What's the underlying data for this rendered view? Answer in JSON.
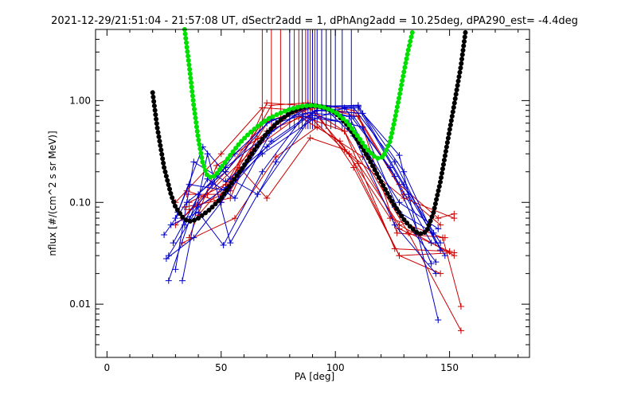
{
  "chart_data": {
    "type": "line",
    "title": "2021-12-29/21:51:04 - 21:57:08 UT, dSectr2add = 1, dPhAng2add = 10.25deg, dPA290_est=  -4.4deg",
    "xlabel": "PA [deg]",
    "ylabel": "nflux [#/(cm^2 s sr MeV)]",
    "xlim": [
      -5,
      185
    ],
    "ylim": [
      0.003,
      5
    ],
    "yscale": "log",
    "grid": false,
    "x_ticks": [
      {
        "value": 0,
        "label": "0"
      },
      {
        "value": 50,
        "label": "50"
      },
      {
        "value": 100,
        "label": "100"
      },
      {
        "value": 150,
        "label": "150"
      }
    ],
    "y_ticks": [
      {
        "value": 0.01,
        "label": "0.01"
      },
      {
        "value": 0.1,
        "label": "0.10"
      },
      {
        "value": 1,
        "label": "1.00"
      }
    ],
    "fit_curves": [
      {
        "color": "#000000",
        "x": [
          20,
          22,
          25,
          28,
          30,
          33,
          35,
          37,
          40,
          45,
          50,
          55,
          60,
          65,
          70,
          75,
          80,
          85,
          90,
          95,
          100,
          105,
          110,
          115,
          120,
          125,
          130,
          133,
          136,
          138,
          140,
          143,
          146,
          149,
          152,
          155,
          157
        ],
        "y": [
          1.2,
          0.55,
          0.22,
          0.12,
          0.09,
          0.072,
          0.066,
          0.065,
          0.07,
          0.085,
          0.11,
          0.16,
          0.23,
          0.34,
          0.48,
          0.62,
          0.75,
          0.85,
          0.9,
          0.86,
          0.76,
          0.58,
          0.4,
          0.26,
          0.16,
          0.1,
          0.068,
          0.057,
          0.05,
          0.049,
          0.052,
          0.08,
          0.16,
          0.38,
          0.9,
          2.2,
          4.8
        ]
      },
      {
        "color": "#00e000",
        "x": [
          34,
          36,
          38,
          40,
          42,
          44,
          46,
          48,
          50,
          54,
          58,
          62,
          66,
          70,
          75,
          80,
          85,
          90,
          95,
          100,
          105,
          110,
          114,
          118,
          121,
          124,
          126,
          128,
          130,
          132,
          134
        ],
        "y": [
          5,
          2.2,
          0.9,
          0.42,
          0.24,
          0.18,
          0.175,
          0.19,
          0.22,
          0.29,
          0.38,
          0.47,
          0.56,
          0.65,
          0.74,
          0.82,
          0.88,
          0.9,
          0.86,
          0.77,
          0.62,
          0.44,
          0.33,
          0.27,
          0.28,
          0.4,
          0.65,
          1.1,
          1.9,
          3.2,
          5
        ]
      }
    ],
    "vertical_markers": [
      {
        "x": 68,
        "color": "#cc0000"
      },
      {
        "x": 72,
        "color": "#cc0000"
      },
      {
        "x": 76,
        "color": "#cc0000"
      },
      {
        "x": 80,
        "color": "#0000cc"
      },
      {
        "x": 82,
        "color": "#cc0000"
      },
      {
        "x": 84,
        "color": "#cc0000"
      },
      {
        "x": 85.5,
        "color": "#0000cc"
      },
      {
        "x": 87,
        "color": "#cc0000"
      },
      {
        "x": 88,
        "color": "#0000cc"
      },
      {
        "x": 89,
        "color": "#cc0000"
      },
      {
        "x": 90,
        "color": "#0000cc"
      },
      {
        "x": 91,
        "color": "#cc0000"
      },
      {
        "x": 92,
        "color": "#0000cc"
      },
      {
        "x": 94,
        "color": "#0000cc"
      },
      {
        "x": 96,
        "color": "#0000cc"
      },
      {
        "x": 98,
        "color": "#0000cc"
      },
      {
        "x": 100,
        "color": "#0000cc"
      },
      {
        "x": 103,
        "color": "#0000cc"
      },
      {
        "x": 107,
        "color": "#0000cc"
      }
    ],
    "series": [
      {
        "color": "#cc0000",
        "x": [
          35,
          50,
          70,
          90,
          110,
          128,
          145,
          152
        ],
        "y": [
          0.13,
          0.1,
          0.95,
          0.88,
          0.7,
          0.15,
          0.07,
          0.077
        ]
      },
      {
        "color": "#cc0000",
        "x": [
          36,
          52,
          72,
          88,
          108,
          130,
          146
        ],
        "y": [
          0.1,
          0.15,
          0.9,
          0.95,
          0.8,
          0.12,
          0.06
        ]
      },
      {
        "color": "#cc0000",
        "x": [
          33,
          52,
          68,
          90,
          110,
          127,
          148
        ],
        "y": [
          0.07,
          0.2,
          0.6,
          0.85,
          0.75,
          0.05,
          0.045
        ]
      },
      {
        "color": "#cc0000",
        "x": [
          36,
          48,
          66,
          86,
          104,
          126,
          150
        ],
        "y": [
          0.045,
          0.23,
          0.42,
          0.9,
          0.5,
          0.035,
          0.033
        ]
      },
      {
        "color": "#cc0000",
        "x": [
          35,
          50,
          72,
          88,
          106,
          128,
          152
        ],
        "y": [
          0.12,
          0.12,
          0.7,
          0.9,
          0.3,
          0.03,
          0.032
        ]
      },
      {
        "color": "#cc0000",
        "x": [
          30,
          44,
          64,
          84,
          102,
          124,
          147,
          155
        ],
        "y": [
          0.06,
          0.12,
          0.33,
          0.7,
          0.4,
          0.07,
          0.045,
          0.0095
        ]
      },
      {
        "color": "#cc0000",
        "x": [
          33,
          56,
          74,
          92,
          112,
          132,
          155
        ],
        "y": [
          0.04,
          0.07,
          0.28,
          0.55,
          0.28,
          0.05,
          0.0055
        ]
      },
      {
        "color": "#cc0000",
        "x": [
          34,
          54,
          68,
          90,
          108,
          128,
          146
        ],
        "y": [
          0.09,
          0.11,
          0.6,
          0.88,
          0.22,
          0.03,
          0.02
        ]
      },
      {
        "color": "#cc0000",
        "x": [
          40,
          58,
          70,
          89,
          104,
          130,
          152
        ],
        "y": [
          0.075,
          0.22,
          0.11,
          0.43,
          0.33,
          0.11,
          0.07
        ]
      },
      {
        "color": "#cc0000",
        "x": [
          30,
          50,
          68,
          86,
          110,
          128,
          152
        ],
        "y": [
          0.1,
          0.3,
          0.85,
          0.8,
          0.24,
          0.06,
          0.03
        ]
      },
      {
        "color": "#cc0000",
        "x": [
          36,
          54,
          70,
          86,
          104,
          128,
          150
        ],
        "y": [
          0.085,
          0.13,
          0.5,
          0.7,
          0.5,
          0.055,
          0.033
        ]
      },
      {
        "color": "#0000cc",
        "x": [
          25,
          35,
          52,
          70,
          90,
          108,
          126,
          144
        ],
        "y": [
          0.048,
          0.1,
          0.2,
          0.6,
          0.92,
          0.85,
          0.25,
          0.04
        ]
      },
      {
        "color": "#0000cc",
        "x": [
          27,
          40,
          52,
          72,
          88,
          110,
          130,
          146
        ],
        "y": [
          0.017,
          0.12,
          0.22,
          0.5,
          0.85,
          0.88,
          0.2,
          0.034
        ]
      },
      {
        "color": "#0000cc",
        "x": [
          30,
          38,
          52,
          70,
          92,
          112,
          128,
          145
        ],
        "y": [
          0.022,
          0.25,
          0.16,
          0.35,
          0.8,
          0.75,
          0.29,
          0.007
        ]
      },
      {
        "color": "#0000cc",
        "x": [
          33,
          44,
          54,
          74,
          90,
          108,
          126,
          142
        ],
        "y": [
          0.017,
          0.3,
          0.04,
          0.25,
          0.75,
          0.7,
          0.18,
          0.025
        ]
      },
      {
        "color": "#0000cc",
        "x": [
          28,
          40,
          51,
          68,
          86,
          106,
          128,
          145
        ],
        "y": [
          0.06,
          0.08,
          0.038,
          0.2,
          0.7,
          0.6,
          0.1,
          0.055
        ]
      },
      {
        "color": "#0000cc",
        "x": [
          30,
          36,
          53,
          72,
          94,
          110,
          130,
          146
        ],
        "y": [
          0.07,
          0.15,
          0.13,
          0.4,
          0.88,
          0.9,
          0.15,
          0.04
        ]
      },
      {
        "color": "#0000cc",
        "x": [
          26,
          38,
          50,
          70,
          88,
          106,
          126,
          144
        ],
        "y": [
          0.028,
          0.045,
          0.1,
          0.45,
          0.9,
          0.7,
          0.09,
          0.026
        ]
      },
      {
        "color": "#0000cc",
        "x": [
          29,
          44,
          56,
          74,
          92,
          110,
          132,
          148
        ],
        "y": [
          0.04,
          0.17,
          0.11,
          0.6,
          0.8,
          0.85,
          0.12,
          0.03
        ]
      },
      {
        "color": "#0000cc",
        "x": [
          31,
          42,
          54,
          66,
          90,
          112,
          128,
          143
        ],
        "y": [
          0.08,
          0.35,
          0.17,
          0.12,
          0.72,
          0.55,
          0.08,
          0.05
        ]
      },
      {
        "color": "#0000cc",
        "x": [
          34,
          46,
          56,
          72,
          96,
          108,
          126,
          144
        ],
        "y": [
          0.06,
          0.15,
          0.3,
          0.65,
          0.82,
          0.45,
          0.06,
          0.02
        ]
      },
      {
        "color": "#0000cc",
        "x": [
          27,
          40,
          52,
          68,
          90,
          104,
          124,
          142
        ],
        "y": [
          0.03,
          0.09,
          0.14,
          0.3,
          0.65,
          0.85,
          0.22,
          0.04
        ]
      }
    ]
  }
}
